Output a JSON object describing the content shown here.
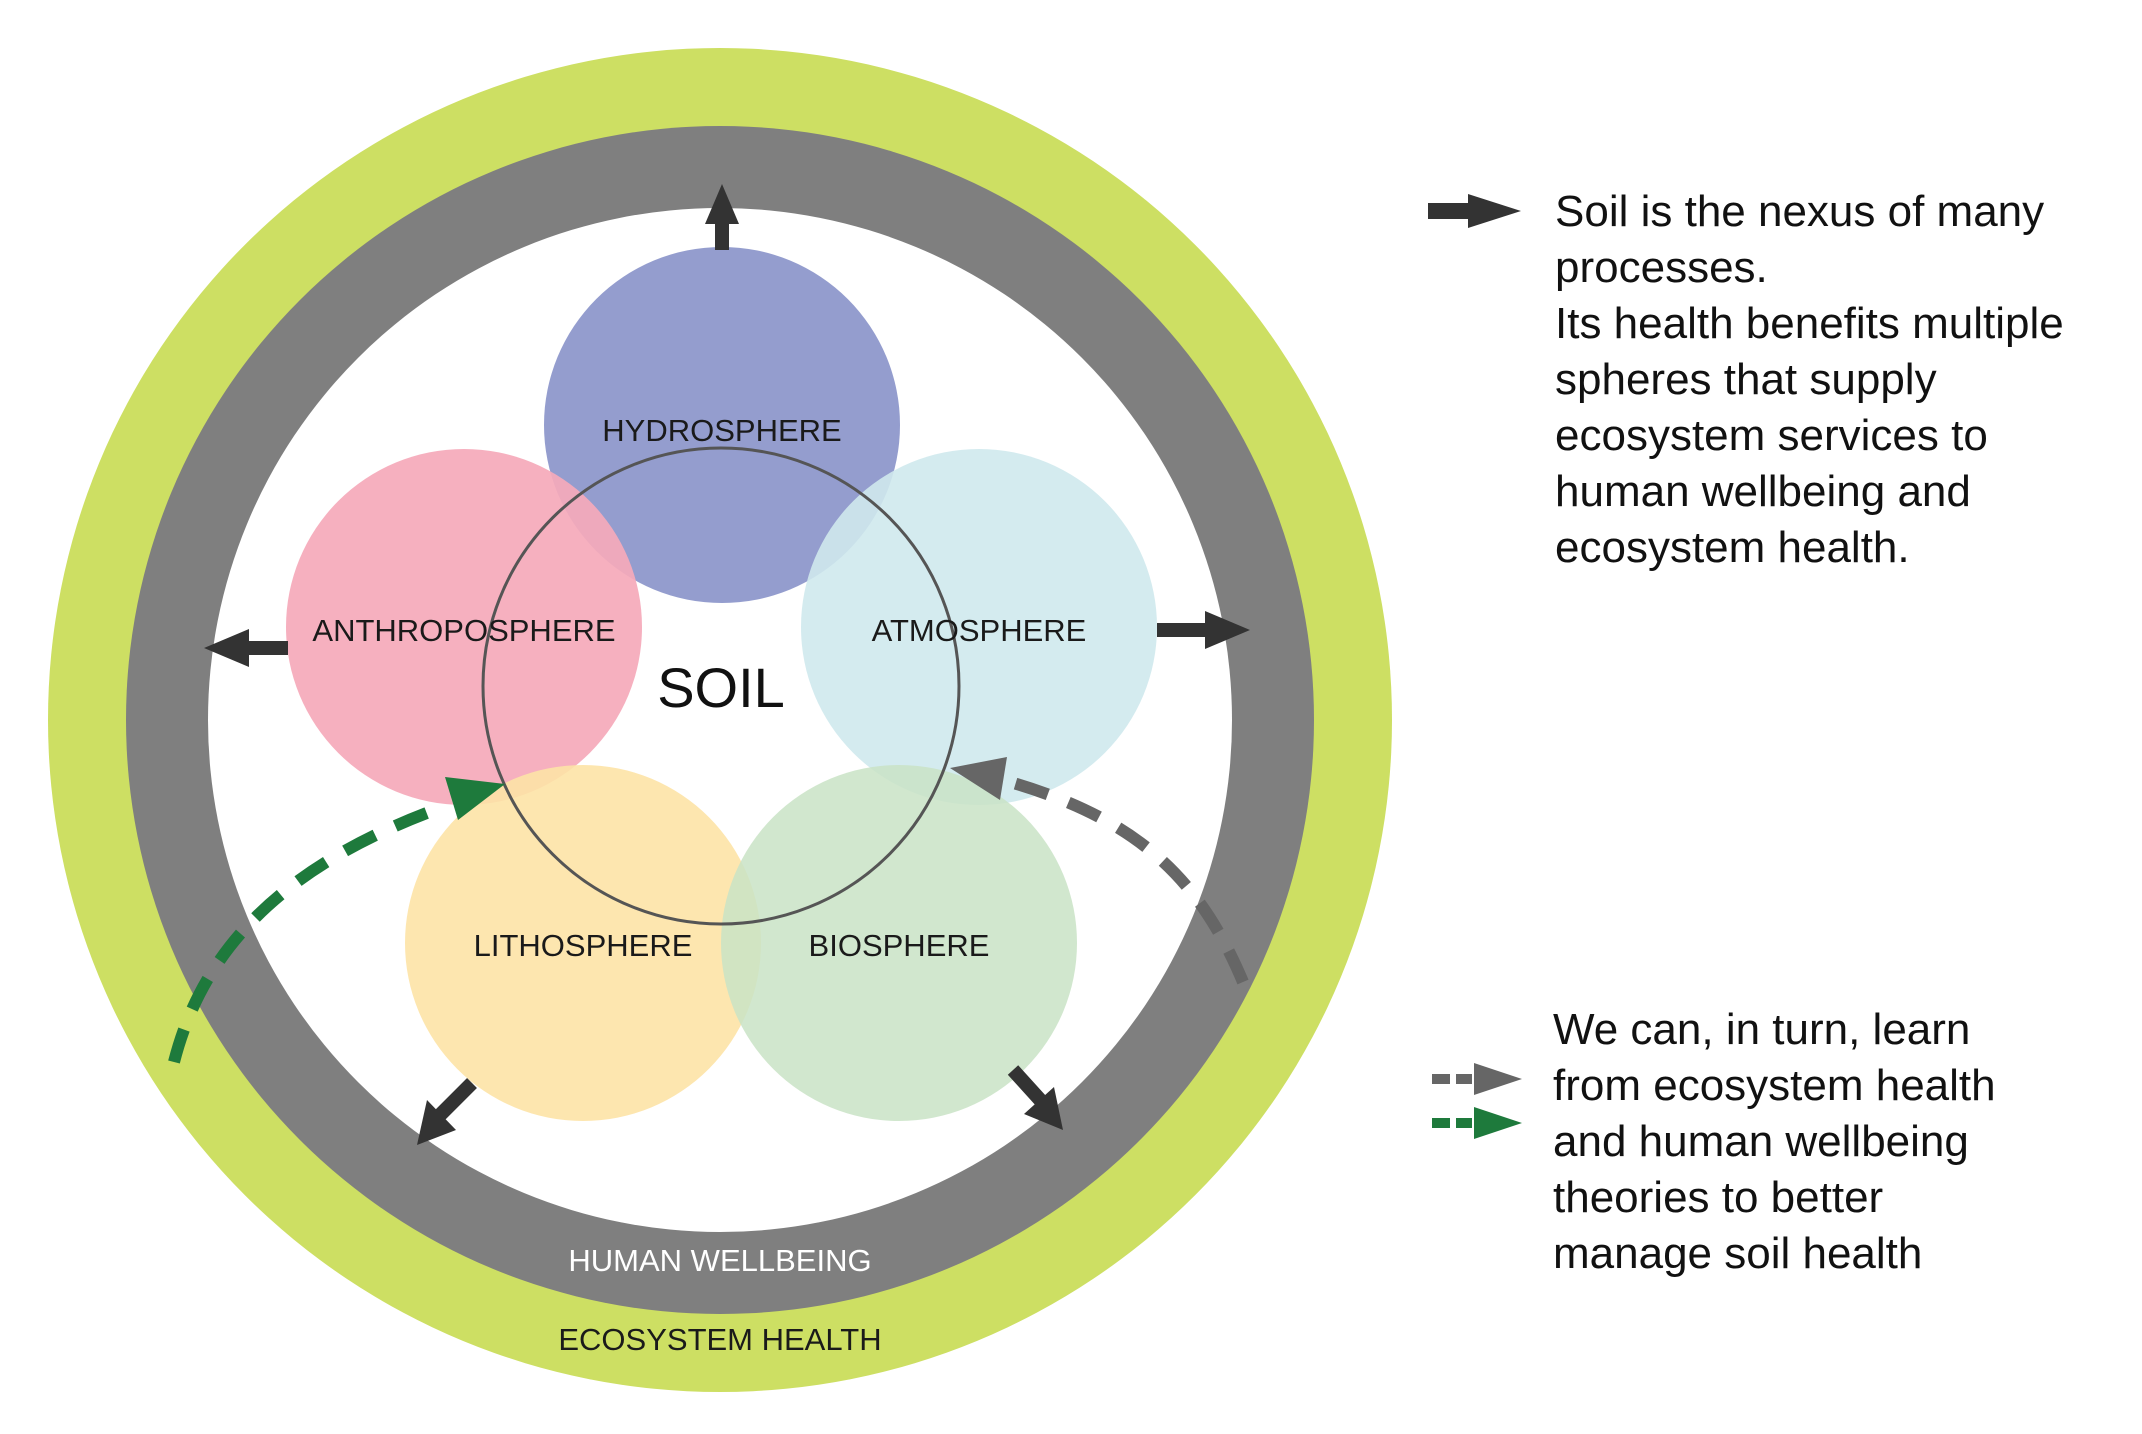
{
  "diagram": {
    "center_label": "SOIL",
    "spheres": {
      "hydrosphere": "HYDROSPHERE",
      "anthroposphere": "ANTHROPOSPHERE",
      "atmosphere": "ATMOSPHERE",
      "lithosphere": "LITHOSPHERE",
      "biosphere": "BIOSPHERE"
    },
    "rings": {
      "inner": "HUMAN WELLBEING",
      "outer": "ECOSYSTEM HEALTH"
    }
  },
  "legend": {
    "solid_arrow_text": [
      "Soil is the nexus of many",
      "processes.",
      "Its health benefits multiple",
      "spheres that supply",
      "ecosystem services to",
      "human wellbeing and",
      "ecosystem health."
    ],
    "dashed_arrow_text": [
      "We can, in turn, learn",
      "from ecosystem health",
      "and human wellbeing",
      "theories to better",
      "manage soil health"
    ]
  },
  "colors": {
    "outer_ring": "#cddf63",
    "inner_ring": "#7f7f7f",
    "hydrosphere": "#8e98cb",
    "anthroposphere": "#f5aaba",
    "atmosphere": "#cfe9ed",
    "lithosphere": "#fde3a6",
    "biosphere": "#c9e3c6",
    "arrow_dark": "#333333",
    "arrow_grey": "#666666",
    "arrow_green": "#1e7a3c"
  }
}
